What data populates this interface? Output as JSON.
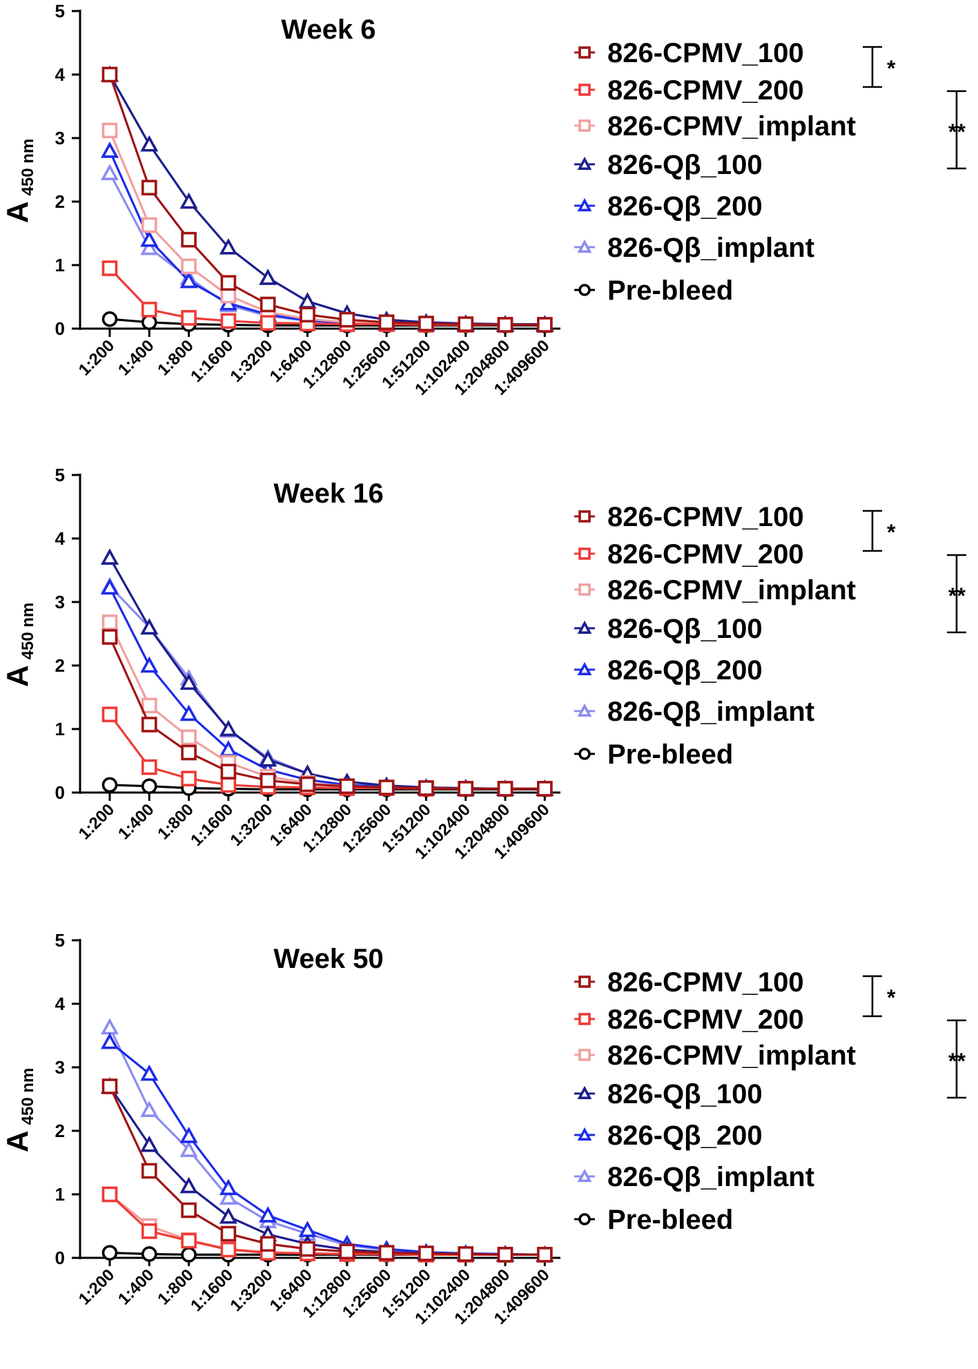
{
  "colors": {
    "826-CPMV_100": "#a01414",
    "826-CPMV_200": "#ee3b36",
    "826-CPMV_implant": "#f0a0a0",
    "826-Qβ_100": "#1c1e8c",
    "826-Qβ_200": "#1c2ce8",
    "826-Qβ_implant": "#8c8cf0",
    "Pre-bleed": "#000000"
  },
  "markers": {
    "826-CPMV_100": "square",
    "826-CPMV_200": "square",
    "826-CPMV_implant": "square",
    "826-Qβ_100": "triangle",
    "826-Qβ_200": "triangle",
    "826-Qβ_implant": "triangle",
    "Pre-bleed": "circle"
  },
  "chart_data": [
    {
      "type": "line",
      "title": "Week 6",
      "ylabel": "A",
      "ylabel_sub": "450 nm",
      "xlabel": "",
      "ylim": [
        0,
        5
      ],
      "yticks": [
        "0",
        "1",
        "2",
        "3",
        "4",
        "5"
      ],
      "categories": [
        "1:200",
        "1:400",
        "1:800",
        "1:1600",
        "1:3200",
        "1:6400",
        "1:12800",
        "1:25600",
        "1:51200",
        "1:102400",
        "1:204800",
        "1:409600"
      ],
      "legend": [
        "826-CPMV_100",
        "826-CPMV_200",
        "826-CPMV_implant",
        "826-Qβ_100",
        "826-Qβ_200",
        "826-Qβ_implant",
        "Pre-bleed"
      ],
      "significance": [
        {
          "label": "*",
          "from": "826-CPMV_100",
          "to": "826-CPMV_200"
        },
        {
          "label": "**",
          "from": "826-CPMV_implant",
          "to": "826-Qβ_100"
        }
      ],
      "series": [
        {
          "name": "826-CPMV_100",
          "values": [
            4.0,
            2.22,
            1.4,
            0.72,
            0.38,
            0.22,
            0.14,
            0.1,
            0.08,
            0.07,
            0.06,
            0.06
          ]
        },
        {
          "name": "826-CPMV_200",
          "values": [
            0.95,
            0.3,
            0.17,
            0.12,
            0.09,
            0.08,
            0.07,
            0.07,
            0.06,
            0.06,
            0.06,
            0.06
          ]
        },
        {
          "name": "826-CPMV_implant",
          "values": [
            3.12,
            1.63,
            0.98,
            0.52,
            0.26,
            0.15,
            0.1,
            0.08,
            0.07,
            0.06,
            0.06,
            0.06
          ]
        },
        {
          "name": "826-Qβ_100",
          "values": [
            4.0,
            2.9,
            2.0,
            1.28,
            0.8,
            0.43,
            0.24,
            0.14,
            0.1,
            0.08,
            0.07,
            0.07
          ]
        },
        {
          "name": "826-Qβ_200",
          "values": [
            2.8,
            1.4,
            0.75,
            0.4,
            0.22,
            0.13,
            0.09,
            0.08,
            0.07,
            0.06,
            0.06,
            0.06
          ]
        },
        {
          "name": "826-Qβ_implant",
          "values": [
            2.45,
            1.27,
            0.8,
            0.37,
            0.2,
            0.12,
            0.09,
            0.08,
            0.07,
            0.06,
            0.06,
            0.06
          ]
        },
        {
          "name": "Pre-bleed",
          "values": [
            0.15,
            0.1,
            0.07,
            0.06,
            0.05,
            0.05,
            0.05,
            0.05,
            0.05,
            0.05,
            0.05,
            0.05
          ]
        }
      ]
    },
    {
      "type": "line",
      "title": "Week 16",
      "ylabel": "A",
      "ylabel_sub": "450 nm",
      "xlabel": "",
      "ylim": [
        0,
        5
      ],
      "yticks": [
        "0",
        "1",
        "2",
        "3",
        "4",
        "5"
      ],
      "categories": [
        "1:200",
        "1:400",
        "1:800",
        "1:1600",
        "1:3200",
        "1:6400",
        "1:12800",
        "1:25600",
        "1:51200",
        "1:102400",
        "1:204800",
        "1:409600"
      ],
      "legend": [
        "826-CPMV_100",
        "826-CPMV_200",
        "826-CPMV_implant",
        "826-Qβ_100",
        "826-Qβ_200",
        "826-Qβ_implant",
        "Pre-bleed"
      ],
      "significance": [
        {
          "label": "*",
          "from": "826-CPMV_100",
          "to": "826-CPMV_200"
        },
        {
          "label": "**",
          "from": "826-CPMV_implant",
          "to": "826-Qβ_100"
        }
      ],
      "series": [
        {
          "name": "826-CPMV_100",
          "values": [
            2.45,
            1.07,
            0.63,
            0.33,
            0.19,
            0.13,
            0.1,
            0.08,
            0.07,
            0.06,
            0.06,
            0.06
          ]
        },
        {
          "name": "826-CPMV_200",
          "values": [
            1.23,
            0.4,
            0.22,
            0.12,
            0.09,
            0.08,
            0.07,
            0.07,
            0.06,
            0.06,
            0.06,
            0.06
          ]
        },
        {
          "name": "826-CPMV_implant",
          "values": [
            2.68,
            1.37,
            0.87,
            0.47,
            0.25,
            0.15,
            0.1,
            0.08,
            0.07,
            0.06,
            0.06,
            0.06
          ]
        },
        {
          "name": "826-Qβ_100",
          "values": [
            3.7,
            2.6,
            1.73,
            1.0,
            0.52,
            0.3,
            0.17,
            0.11,
            0.08,
            0.07,
            0.06,
            0.06
          ]
        },
        {
          "name": "826-Qβ_200",
          "values": [
            3.23,
            2.0,
            1.24,
            0.68,
            0.36,
            0.2,
            0.12,
            0.09,
            0.07,
            0.06,
            0.06,
            0.06
          ]
        },
        {
          "name": "826-Qβ_implant",
          "values": [
            3.25,
            2.6,
            1.8,
            0.98,
            0.55,
            0.3,
            0.17,
            0.11,
            0.08,
            0.07,
            0.06,
            0.06
          ]
        },
        {
          "name": "Pre-bleed",
          "values": [
            0.12,
            0.1,
            0.07,
            0.06,
            0.05,
            0.05,
            0.05,
            0.05,
            0.05,
            0.05,
            0.05,
            0.05
          ]
        }
      ]
    },
    {
      "type": "line",
      "title": "Week 50",
      "ylabel": "A",
      "ylabel_sub": "450 nm",
      "xlabel": "",
      "ylim": [
        0,
        5
      ],
      "yticks": [
        "0",
        "1",
        "2",
        "3",
        "4",
        "5"
      ],
      "categories": [
        "1:200",
        "1:400",
        "1:800",
        "1:1600",
        "1:3200",
        "1:6400",
        "1:12800",
        "1:25600",
        "1:51200",
        "1:102400",
        "1:204800",
        "1:409600"
      ],
      "legend": [
        "826-CPMV_100",
        "826-CPMV_200",
        "826-CPMV_implant",
        "826-Qβ_100",
        "826-Qβ_200",
        "826-Qβ_implant",
        "Pre-bleed"
      ],
      "significance": [
        {
          "label": "*",
          "from": "826-CPMV_100",
          "to": "826-CPMV_200"
        },
        {
          "label": "**",
          "from": "826-CPMV_implant",
          "to": "826-Qβ_100"
        }
      ],
      "series": [
        {
          "name": "826-CPMV_100",
          "values": [
            2.7,
            1.37,
            0.75,
            0.38,
            0.22,
            0.14,
            0.1,
            0.08,
            0.07,
            0.06,
            0.05,
            0.05
          ]
        },
        {
          "name": "826-CPMV_200",
          "values": [
            1.0,
            0.42,
            0.27,
            0.13,
            0.08,
            0.07,
            0.06,
            0.06,
            0.05,
            0.05,
            0.05,
            0.05
          ]
        },
        {
          "name": "826-CPMV_implant",
          "values": [
            1.0,
            0.5,
            0.28,
            0.14,
            0.09,
            0.07,
            0.06,
            0.06,
            0.05,
            0.05,
            0.05,
            0.05
          ]
        },
        {
          "name": "826-Qβ_100",
          "values": [
            2.7,
            1.78,
            1.13,
            0.65,
            0.37,
            0.22,
            0.13,
            0.09,
            0.07,
            0.06,
            0.05,
            0.05
          ]
        },
        {
          "name": "826-Qβ_200",
          "values": [
            3.4,
            2.9,
            1.92,
            1.1,
            0.67,
            0.44,
            0.22,
            0.14,
            0.09,
            0.07,
            0.06,
            0.05
          ]
        },
        {
          "name": "826-Qβ_implant",
          "values": [
            3.63,
            2.33,
            1.7,
            0.95,
            0.58,
            0.38,
            0.2,
            0.12,
            0.08,
            0.07,
            0.06,
            0.05
          ]
        },
        {
          "name": "Pre-bleed",
          "values": [
            0.08,
            0.06,
            0.05,
            0.05,
            0.05,
            0.05,
            0.05,
            0.05,
            0.05,
            0.05,
            0.05,
            0.05
          ]
        }
      ]
    }
  ]
}
